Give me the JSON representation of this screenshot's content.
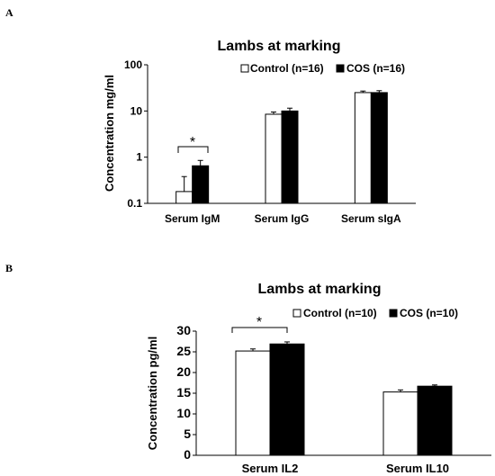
{
  "chart_data": [
    {
      "type": "bar",
      "panel_label": "A",
      "title": "Lambs at marking",
      "xlabel": "",
      "ylabel": "Concentration mg/ml",
      "yscale": "log",
      "ylim": [
        0.1,
        100
      ],
      "yticks": [
        "0.1",
        "1",
        "10",
        "100"
      ],
      "categories": [
        "Serum IgM",
        "Serum IgG",
        "Serum sIgA"
      ],
      "series": [
        {
          "name": "Control (n=16)",
          "values": [
            0.18,
            8.5,
            25
          ],
          "errors": [
            0.2,
            1.0,
            2.0
          ],
          "fill": "#ffffff"
        },
        {
          "name": "COS (n=16)",
          "values": [
            0.65,
            10,
            25
          ],
          "errors": [
            0.2,
            1.5,
            2.5
          ],
          "fill": "#000000"
        }
      ],
      "annotations": [
        {
          "text": "*",
          "category": "Serum IgM"
        }
      ],
      "legend": "top-right",
      "grid": false
    },
    {
      "type": "bar",
      "panel_label": "B",
      "title": "Lambs at marking",
      "xlabel": "",
      "ylabel": "Concentration pg/ml",
      "yscale": "linear",
      "ylim": [
        0,
        30
      ],
      "yticks": [
        "0",
        "5",
        "10",
        "15",
        "20",
        "25",
        "30"
      ],
      "categories": [
        "Serum IL2",
        "Serum IL10"
      ],
      "series": [
        {
          "name": "Control (n=10)",
          "values": [
            25.2,
            15.3
          ],
          "errors": [
            0.5,
            0.5
          ],
          "fill": "#ffffff"
        },
        {
          "name": "COS (n=10)",
          "values": [
            26.9,
            16.7
          ],
          "errors": [
            0.5,
            0.3
          ],
          "fill": "#000000"
        }
      ],
      "annotations": [
        {
          "text": "*",
          "category": "Serum IL2"
        }
      ],
      "legend": "top-right",
      "grid": false
    }
  ]
}
